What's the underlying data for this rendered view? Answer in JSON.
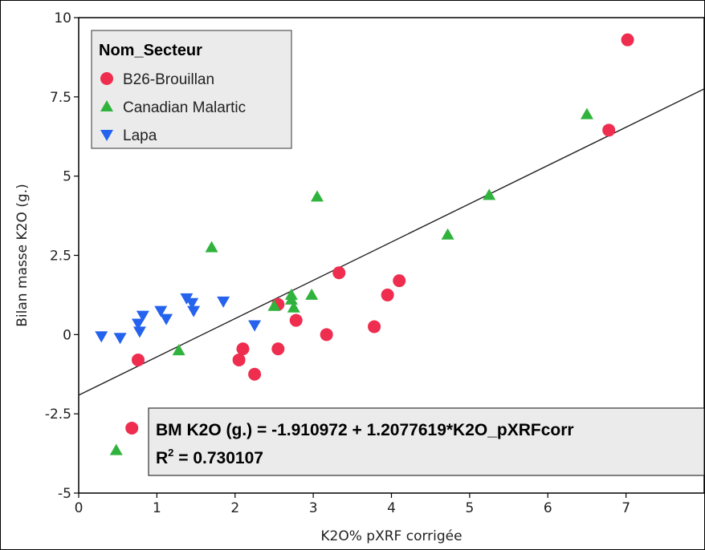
{
  "chart_data": {
    "type": "scatter",
    "xlabel": "K2O% pXRF corrigée",
    "ylabel": "Bilan masse K2O (g.)",
    "xlim": [
      0,
      8
    ],
    "ylim": [
      -5,
      10
    ],
    "x_ticks": [
      0,
      1,
      2,
      3,
      4,
      5,
      6,
      7
    ],
    "y_ticks": [
      10,
      7.5,
      5,
      2.5,
      0,
      -2.5,
      -5
    ],
    "y_tick_labels": [
      "10",
      "7.5",
      "5",
      "2.5",
      "0",
      "-2.5",
      "-5"
    ],
    "grid": false,
    "legend": {
      "title": "Nom_Secteur",
      "position": "top-left"
    },
    "series": [
      {
        "name": "B26-Brouillan",
        "marker": "circle",
        "color": "#ee2d4f",
        "x": [
          7.02,
          6.78,
          3.33,
          4.1,
          3.95,
          2.55,
          2.78,
          3.78,
          3.17,
          2.1,
          2.05,
          2.55,
          2.25,
          0.76,
          0.68
        ],
        "y": [
          9.3,
          6.45,
          1.95,
          1.7,
          1.25,
          0.95,
          0.45,
          0.25,
          0.0,
          -0.45,
          -0.8,
          -0.45,
          -1.25,
          -0.8,
          -2.95
        ]
      },
      {
        "name": "Canadian Malartic",
        "marker": "triangle-up",
        "color": "#2fb33c",
        "x": [
          6.5,
          3.05,
          5.25,
          4.72,
          1.7,
          2.72,
          2.72,
          2.98,
          2.5,
          2.75,
          1.28,
          0.48
        ],
        "y": [
          6.95,
          4.35,
          4.4,
          3.15,
          2.75,
          1.25,
          1.1,
          1.25,
          0.9,
          0.85,
          -0.5,
          -3.65
        ]
      },
      {
        "name": "Lapa",
        "marker": "triangle-down",
        "color": "#2563ee",
        "x": [
          0.29,
          0.53,
          0.76,
          0.78,
          0.82,
          1.05,
          1.12,
          1.38,
          1.45,
          1.47,
          1.85,
          2.25
        ],
        "y": [
          -0.05,
          -0.1,
          0.35,
          0.1,
          0.6,
          0.75,
          0.5,
          1.15,
          1.0,
          0.75,
          1.05,
          0.3
        ]
      }
    ],
    "fit_line": {
      "intercept": -1.910972,
      "slope": 1.2077619,
      "color": "#222222"
    },
    "annotation": {
      "equation": "BM K2O (g.) = -1.910972 + 1.2077619*K2O_pXRFcorr",
      "r2_prefix": "R",
      "r2_sup": "2",
      "r2_value": " = 0.730107"
    }
  }
}
